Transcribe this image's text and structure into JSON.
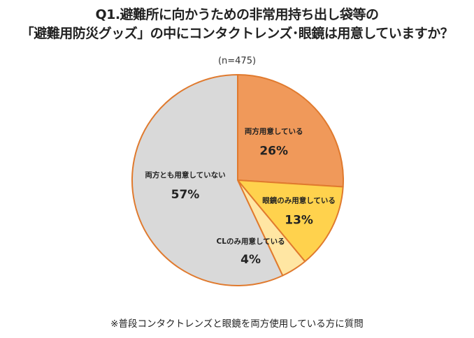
{
  "title_lines": [
    "Q1.避難所に向かうための非常用持ち出し袋等の",
    "「避難用防災グッズ」の中にコンタクトレンズ･眼鏡は用意していますか？"
  ],
  "sample_size": "(n=475)",
  "footnote": "※普段コンタクトレンズと眼鏡を両方使用している方に質問",
  "chart_data": {
    "type": "pie",
    "title": "Q1.避難所に向かうための非常用持ち出し袋等の「避難用防災グッズ」の中にコンタクトレンズ･眼鏡は用意していますか？",
    "n": 475,
    "start_angle_deg": 0,
    "direction": "clockwise",
    "slices": [
      {
        "label": "両方用意している",
        "value": 26,
        "value_label": "26%",
        "color": "#F0995A"
      },
      {
        "label": "眼鏡のみ用意している",
        "value": 13,
        "value_label": "13%",
        "color": "#FFD24D"
      },
      {
        "label": "CLのみ用意している",
        "value": 4,
        "value_label": "4%",
        "color": "#FFE6A3"
      },
      {
        "label": "両方とも用意していない",
        "value": 57,
        "value_label": "57%",
        "color": "#D9D9D9"
      }
    ],
    "edge_color": "#E07A2E"
  }
}
